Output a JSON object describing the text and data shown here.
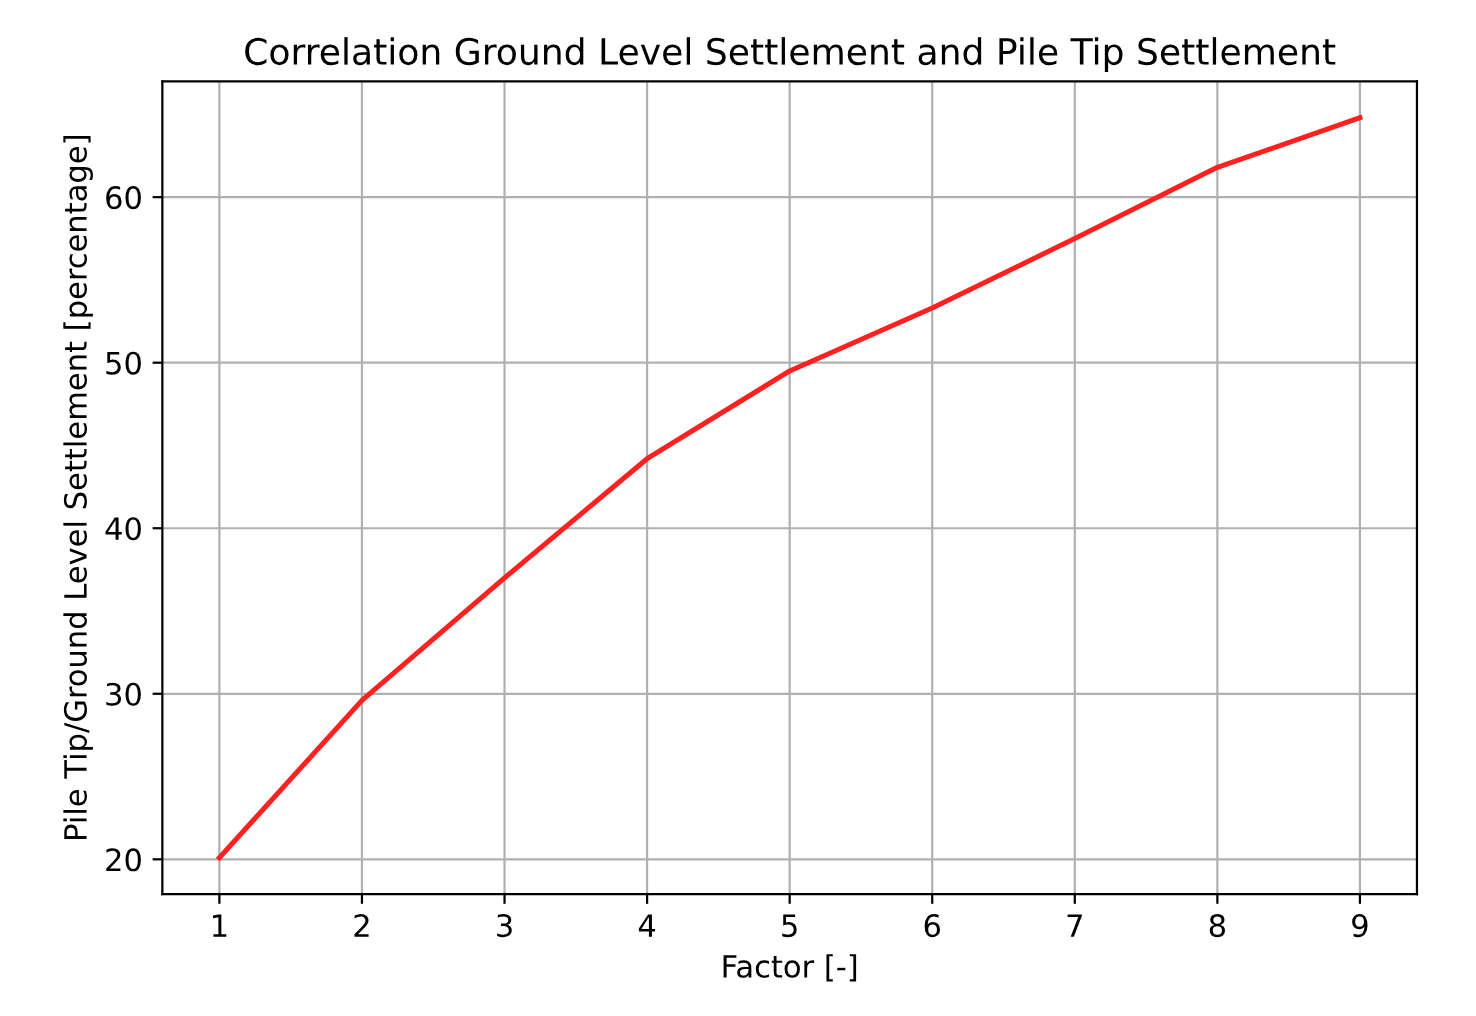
{
  "chart_data": {
    "type": "line",
    "title": "Correlation Ground Level Settlement and Pile Tip Settlement",
    "xlabel": "Factor [-]",
    "ylabel": "Pile Tip/Ground Level Settlement [percentage]",
    "x": [
      1,
      2,
      3,
      4,
      5,
      6,
      7,
      8,
      9
    ],
    "series": [
      {
        "color": "#ff2020",
        "values": [
          20.1,
          29.6,
          37.0,
          44.2,
          49.5,
          53.3,
          57.5,
          61.8,
          64.8
        ]
      }
    ],
    "xlim": [
      0.6,
      9.4
    ],
    "xticks": [
      1,
      2,
      3,
      4,
      5,
      6,
      7,
      8,
      9
    ],
    "ylim": [
      17.9,
      67.0
    ],
    "yticks": [
      20,
      30,
      40,
      50,
      60
    ],
    "grid": true,
    "marker": "none",
    "line_style": "solid"
  }
}
